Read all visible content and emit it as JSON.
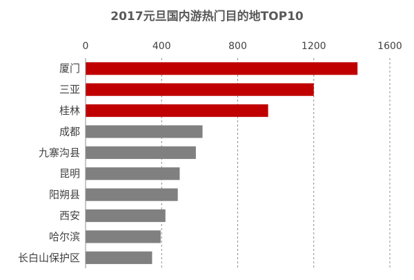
{
  "chart_data": {
    "type": "bar",
    "orientation": "horizontal",
    "title": "2017元旦国内游热门目的地TOP10",
    "categories": [
      "厦门",
      "三亚",
      "桂林",
      "成都",
      "九寨沟县",
      "昆明",
      "阳朔县",
      "西安",
      "哈尔滨",
      "长白山保护区"
    ],
    "values": [
      1430,
      1200,
      960,
      615,
      580,
      495,
      485,
      420,
      395,
      350
    ],
    "xlim": [
      0,
      1600
    ],
    "xticks": [
      0,
      400,
      800,
      1200,
      1600
    ],
    "x_axis_position": "top",
    "grid": true,
    "legend": "none",
    "highlight_count": 3,
    "colors": {
      "highlight": "#c00000",
      "default": "#808080"
    }
  }
}
